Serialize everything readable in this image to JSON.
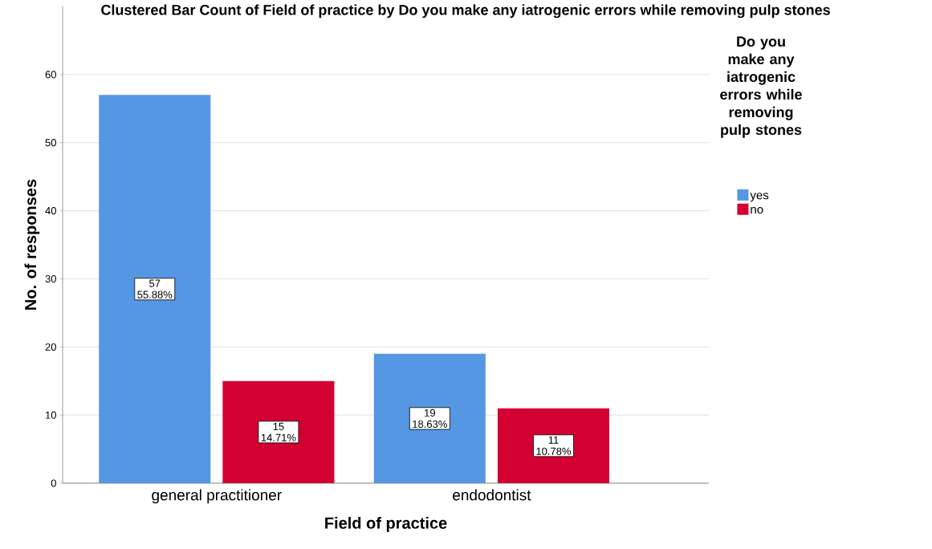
{
  "chart_data": {
    "type": "bar",
    "title": "Clustered Bar Count of Field of practice  by Do you make any iatrogenic errors while removing pulp stones",
    "xlabel": "Field of practice",
    "ylabel": "No. of responses",
    "legend_title": "Do you make any iatrogenic errors while removing pulp stones",
    "categories": [
      "general practitioner",
      "endodontist"
    ],
    "series": [
      {
        "name": "yes",
        "color": "#5597e3",
        "values": [
          57,
          19
        ],
        "value_labels": [
          "57 55.88%",
          "19 18.63%"
        ]
      },
      {
        "name": "no",
        "color": "#d20132",
        "values": [
          15,
          11
        ],
        "value_labels": [
          "15 14.71%",
          "11 10.78%"
        ]
      }
    ],
    "ylim": [
      0,
      70
    ],
    "yticks": [
      0,
      10,
      20,
      30,
      40,
      50,
      60
    ],
    "grid": "y",
    "legend": "right"
  }
}
